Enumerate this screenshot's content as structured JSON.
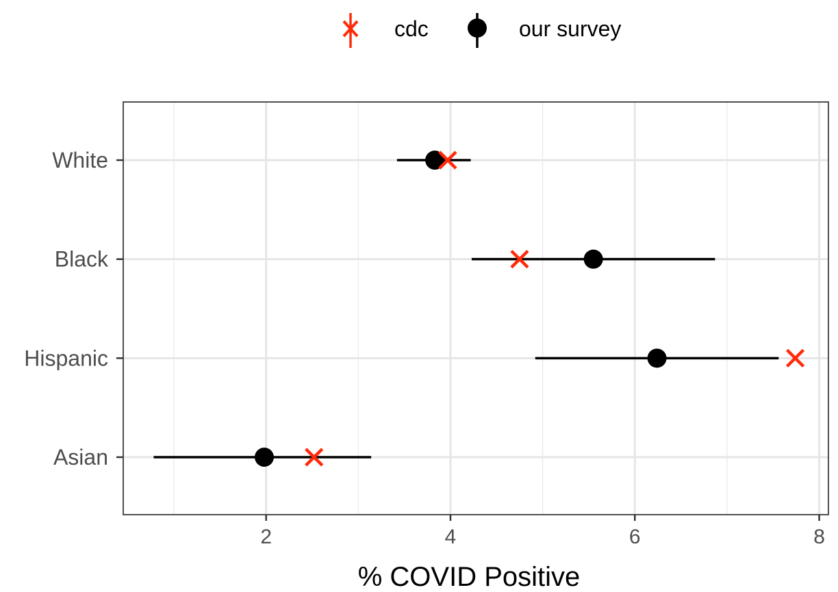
{
  "chart_data": {
    "type": "scatter",
    "title": "",
    "xlabel": "% COVID Positive",
    "ylabel": "",
    "xlim": [
      0.45,
      8.1
    ],
    "x_ticks": [
      2,
      4,
      6,
      8
    ],
    "x_tick_labels": [
      "2",
      "4",
      "6",
      "8"
    ],
    "categories": [
      "Asian",
      "Hispanic",
      "Black",
      "White"
    ],
    "grid": true,
    "legend_position": "top",
    "series": [
      {
        "name": "cdc",
        "marker": "x",
        "color": "#ff2a0a",
        "values": [
          2.52,
          7.74,
          4.75,
          3.97
        ]
      },
      {
        "name": "our survey",
        "marker": "circle",
        "color": "#000000",
        "values": [
          1.98,
          6.24,
          5.55,
          3.83
        ],
        "ci_low": [
          0.78,
          4.92,
          4.23,
          3.42
        ],
        "ci_high": [
          3.14,
          7.56,
          6.87,
          4.22
        ]
      }
    ]
  }
}
